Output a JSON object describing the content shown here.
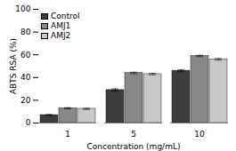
{
  "chart_data": {
    "type": "bar",
    "categories": [
      "1",
      "5",
      "10"
    ],
    "series": [
      {
        "name": "Control",
        "color": "#3d3d3d",
        "values": [
          7.0,
          29.0,
          46.0
        ],
        "errors": [
          0.5,
          1.0,
          0.8
        ]
      },
      {
        "name": "AMJ1",
        "color": "#888888",
        "values": [
          13.0,
          44.0,
          59.0
        ],
        "errors": [
          0.5,
          0.7,
          0.6
        ]
      },
      {
        "name": "AMJ2",
        "color": "#c8c8c8",
        "values": [
          12.5,
          43.0,
          56.0
        ],
        "errors": [
          0.5,
          0.6,
          0.7
        ]
      }
    ],
    "xlabel": "Concentration (mg/mL)",
    "ylabel": "ABTS RSA (%)",
    "ylim": [
      0,
      100
    ],
    "yticks": [
      0,
      20,
      40,
      60,
      80,
      100
    ],
    "legend": "upper left"
  }
}
